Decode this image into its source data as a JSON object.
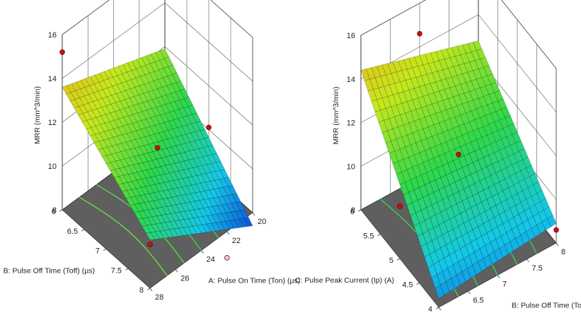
{
  "chart_data": [
    {
      "type": "surface3d",
      "zlabel": "MRR (mm^3/min)",
      "xlabel": "A: Pulse On Time (Ton) (µs)",
      "ylabel": "B: Pulse Off Time (Toff) (µs)",
      "x_ticks": [
        "20",
        "22",
        "24",
        "26",
        "28"
      ],
      "y_ticks": [
        "6",
        "6.5",
        "7",
        "7.5",
        "8"
      ],
      "z_ticks": [
        "8",
        "10",
        "12",
        "14",
        "16"
      ],
      "xlim": [
        20,
        28
      ],
      "ylim": [
        6,
        8
      ],
      "zlim": [
        8,
        16
      ],
      "colormap": [
        "#0a2fd6",
        "#14c8e8",
        "#2fd84a",
        "#c6e81c",
        "#f5a41c"
      ],
      "surface_corners": {
        "Ton_28_Toff_6": 13.6,
        "Ton_20_Toff_6": 11.9,
        "Ton_28_Toff_8": 10.2,
        "Ton_20_Toff_8": 7.4
      },
      "design_points": [
        {
          "x": 28,
          "y": 6,
          "z": 15.2,
          "above": true
        },
        {
          "x": 24,
          "y": 7,
          "z": 10.9,
          "above": true
        },
        {
          "x": 20,
          "y": 7,
          "z": 10.1,
          "above": true
        },
        {
          "x": 28,
          "y": 8,
          "z": 10.0,
          "above": true
        },
        {
          "x": 22,
          "y": 8,
          "z": 6.8,
          "above": false
        }
      ]
    },
    {
      "type": "surface3d",
      "zlabel": "MRR (mm^3/min)",
      "xlabel": "B: Pulse Off Time (Toff) (µs)",
      "ylabel": "C: Pulse Peak Current (Ip) (A)",
      "x_ticks": [
        "6",
        "6.5",
        "7",
        "7.5",
        "8"
      ],
      "y_ticks": [
        "4",
        "4.5",
        "5",
        "5.5",
        "6"
      ],
      "z_ticks": [
        "8",
        "10",
        "12",
        "14",
        "16"
      ],
      "xlim": [
        6,
        8
      ],
      "ylim": [
        4,
        6
      ],
      "zlim": [
        8,
        16
      ],
      "colormap": [
        "#0a2fd6",
        "#14c8e8",
        "#2fd84a",
        "#c6e81c",
        "#f5a41c"
      ],
      "surface_corners": {
        "Toff_6_Ip_6": 14.4,
        "Toff_8_Ip_6": 12.8,
        "Toff_6_Ip_4": 8.4,
        "Toff_8_Ip_4": 8.9
      },
      "design_points": [
        {
          "x": 7,
          "y": 6,
          "z": 14.6,
          "above": true
        },
        {
          "x": 7,
          "y": 5,
          "z": 11.3,
          "above": true
        },
        {
          "x": 6,
          "y": 5,
          "z": 10.4,
          "above": true
        },
        {
          "x": 8,
          "y": 4,
          "z": 8.6,
          "above": true
        }
      ]
    }
  ]
}
